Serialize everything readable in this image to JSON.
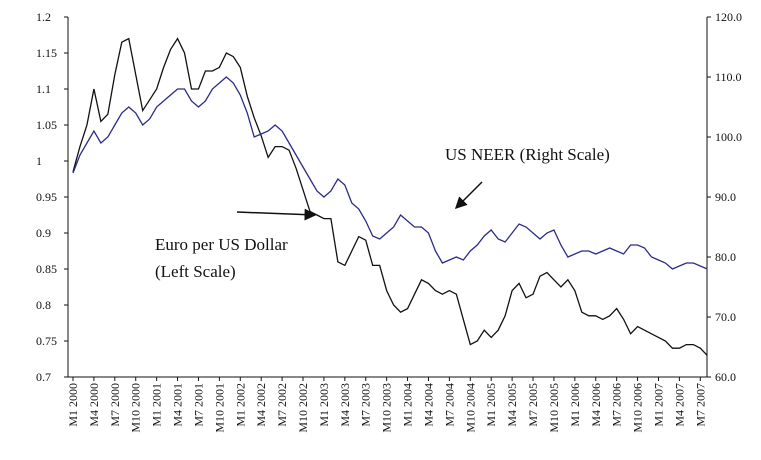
{
  "chart_data": {
    "type": "line",
    "categories": [
      "M1 2000",
      null,
      null,
      "M4 2000",
      null,
      null,
      "M7 2000",
      null,
      null,
      "M10 2000",
      null,
      null,
      "M1 2001",
      null,
      null,
      "M4 2001",
      null,
      null,
      "M7 2001",
      null,
      null,
      "M10 2001",
      null,
      null,
      "M1 2002",
      null,
      null,
      "M4 2002",
      null,
      null,
      "M7 2002",
      null,
      null,
      "M10 2002",
      null,
      null,
      "M1 2003",
      null,
      null,
      "M4 2003",
      null,
      null,
      "M7 2003",
      null,
      null,
      "M10 2003",
      null,
      null,
      "M1 2004",
      null,
      null,
      "M4 2004",
      null,
      null,
      "M7 2004",
      null,
      null,
      "M10 2004",
      null,
      null,
      "M1 2005",
      null,
      null,
      "M4 2005",
      null,
      null,
      "M7 2005",
      null,
      null,
      "M10 2005",
      null,
      null,
      "M1 2006",
      null,
      null,
      "M4 2006",
      null,
      null,
      "M7 2006",
      null,
      null,
      "M10 2006",
      null,
      null,
      "M1 2007",
      null,
      null,
      "M4 2007",
      null,
      null,
      "M7 2007",
      null
    ],
    "series": [
      {
        "name": "Euro per US Dollar",
        "color": "#111111",
        "values": [
          0.985,
          1.02,
          1.05,
          1.1,
          1.055,
          1.065,
          1.12,
          1.165,
          1.17,
          1.12,
          1.07,
          1.085,
          1.1,
          1.13,
          1.155,
          1.17,
          1.15,
          1.1,
          1.1,
          1.125,
          1.125,
          1.13,
          1.15,
          1.145,
          1.13,
          1.09,
          1.06,
          1.035,
          1.005,
          1.02,
          1.02,
          1.015,
          0.99,
          0.96,
          0.93,
          0.925,
          0.92,
          0.92,
          0.86,
          0.855,
          0.875,
          0.895,
          0.89,
          0.855,
          0.855,
          0.82,
          0.8,
          0.79,
          0.795,
          0.815,
          0.835,
          0.83,
          0.82,
          0.815,
          0.82,
          0.815,
          0.78,
          0.745,
          0.75,
          0.765,
          0.755,
          0.765,
          0.785,
          0.82,
          0.83,
          0.81,
          0.815,
          0.84,
          0.845,
          0.835,
          0.825,
          0.835,
          0.82,
          0.79,
          0.785,
          0.785,
          0.78,
          0.785,
          0.795,
          0.78,
          0.76,
          0.77,
          0.765,
          0.76,
          0.755,
          0.75,
          0.74,
          0.74,
          0.745,
          0.745,
          0.74,
          0.73
        ]
      },
      {
        "name": "US NEER",
        "color": "#2b2b8c",
        "axis": "y2",
        "values": [
          94,
          97,
          99,
          101,
          99,
          100,
          102,
          104,
          105,
          104,
          102,
          103,
          105,
          106,
          107,
          108,
          108,
          106,
          105,
          106,
          108,
          109,
          110,
          109,
          107,
          104,
          100,
          100.5,
          101,
          102,
          101,
          99,
          97,
          95,
          93,
          91,
          90,
          91,
          93,
          92,
          89,
          88,
          86,
          83.5,
          83,
          84,
          85,
          87,
          86,
          85,
          85,
          84,
          81,
          79,
          79.5,
          80,
          79.5,
          81,
          82,
          83.5,
          84.5,
          83,
          82.5,
          84,
          85.5,
          85,
          84,
          83,
          84,
          84.5,
          82,
          80,
          80.5,
          81,
          81,
          80.5,
          81,
          81.5,
          81,
          80.5,
          82,
          82,
          81.5,
          80,
          79.5,
          79,
          78,
          78.5,
          79,
          79,
          78.5,
          78
        ]
      }
    ],
    "ylim": [
      0.7,
      1.2
    ],
    "yticks": [
      0.7,
      0.75,
      0.8,
      0.85,
      0.9,
      0.95,
      1,
      1.05,
      1.1,
      1.15,
      1.2
    ],
    "y2lim": [
      60,
      120
    ],
    "y2ticks": [
      {
        "value": 60,
        "label": "60.0"
      },
      {
        "value": 70,
        "label": "70.0"
      },
      {
        "value": 80,
        "label": "80.0"
      },
      {
        "value": 90,
        "label": "90.0"
      },
      {
        "value": 100,
        "label": "100.0"
      },
      {
        "value": 110,
        "label": "110.0"
      },
      {
        "value": 120,
        "label": "120.0"
      }
    ],
    "annotations": [
      "US NEER (Right Scale)",
      "Euro per US Dollar",
      "(Left Scale)"
    ]
  }
}
